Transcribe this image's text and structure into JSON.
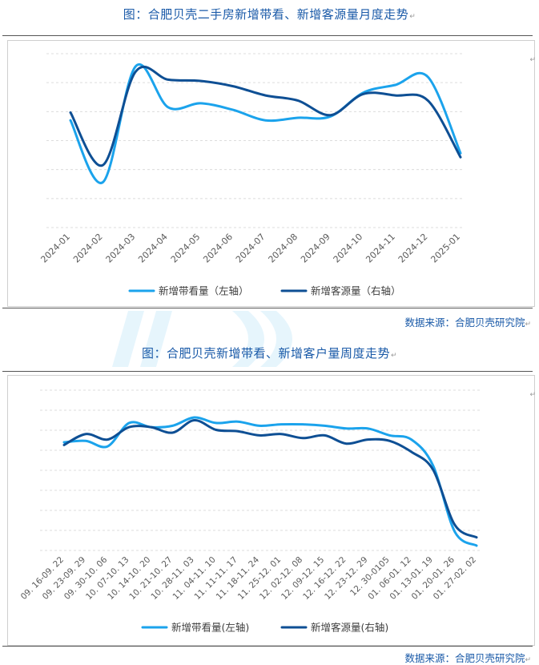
{
  "chart_data": [
    {
      "type": "line",
      "title": "图：合肥贝壳二手房新增带看、新增客源量月度走势",
      "source": "数据来源：合肥贝壳研究院",
      "categories": [
        "2024-01",
        "2024-02",
        "2024-03",
        "2024-04",
        "2024-05",
        "2024-06",
        "2024-07",
        "2024-08",
        "2024-09",
        "2024-10",
        "2024-11",
        "2024-12",
        "2025-01"
      ],
      "series": [
        {
          "name": "新增带看量（左轴）",
          "color": "#1ba3ec",
          "values": [
            0.59,
            0.12,
            1.0,
            0.69,
            0.72,
            0.67,
            0.59,
            0.61,
            0.62,
            0.8,
            0.86,
            0.92,
            0.34
          ]
        },
        {
          "name": "新增客源量（右轴）",
          "color": "#0e4f94",
          "values": [
            0.65,
            0.25,
            0.96,
            0.9,
            0.89,
            0.85,
            0.78,
            0.74,
            0.63,
            0.79,
            0.78,
            0.74,
            0.31
          ]
        }
      ],
      "grid": true,
      "legend": "bottom"
    },
    {
      "type": "line",
      "title": "图：合肥贝壳新增带看、新增客户量周度走势",
      "source": "数据来源：合肥贝壳研究院",
      "categories": [
        "09. 16-09. 22",
        "09. 23-09. 29",
        "09. 30-10. 06",
        "10. 07-10. 13",
        "10. 14-10. 20",
        "10. 21-10. 27",
        "10. 28-11. 03",
        "11. 04-11. 10",
        "11. 11-11. 17",
        "11. 18-11. 24",
        "11. 25-12. 01",
        "12. 02-12. 08",
        "12. 09-12. 15",
        "12. 16-12. 22",
        "12. 23-12. 29",
        "12. 30-0105",
        "01. 06-01. 12",
        "01. 13-01. 19",
        "01. 20-01. 26",
        "01. 27-02. 02"
      ],
      "series": [
        {
          "name": "新增带看量(左轴)",
          "color": "#1ba3ec",
          "values": [
            0.75,
            0.76,
            0.72,
            0.89,
            0.86,
            0.87,
            0.93,
            0.89,
            0.9,
            0.87,
            0.88,
            0.88,
            0.87,
            0.85,
            0.85,
            0.8,
            0.77,
            0.58,
            0.1,
            0.0
          ]
        },
        {
          "name": "新增客源量(右轴)",
          "color": "#0e4f94",
          "values": [
            0.73,
            0.81,
            0.77,
            0.86,
            0.86,
            0.82,
            0.91,
            0.84,
            0.83,
            0.8,
            0.81,
            0.78,
            0.8,
            0.74,
            0.77,
            0.76,
            0.68,
            0.55,
            0.15,
            0.06
          ]
        }
      ],
      "grid": true,
      "legend": "bottom"
    }
  ],
  "marks": {
    "para": "↵"
  }
}
